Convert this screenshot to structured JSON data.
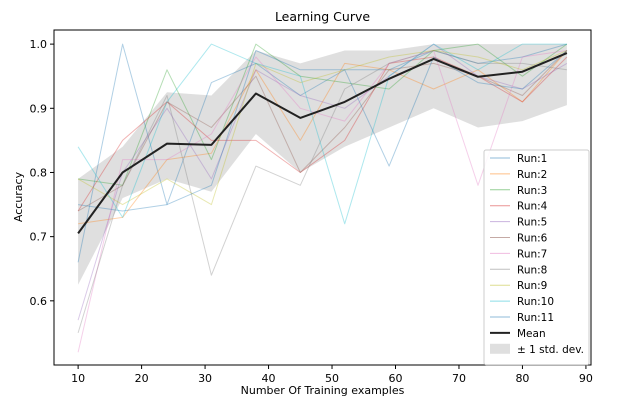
{
  "chart_data": {
    "type": "line",
    "title": "Learning Curve",
    "xlabel": "Number Of Training examples",
    "ylabel": "Accuracy",
    "xlim": [
      6.2,
      90.8
    ],
    "ylim": [
      0.5,
      1.022
    ],
    "x_ticks": [
      10,
      20,
      30,
      40,
      50,
      60,
      70,
      80,
      90
    ],
    "y_ticks": [
      0.6,
      0.7,
      0.8,
      0.9,
      1.0
    ],
    "x_tick_labels": [
      "10",
      "20",
      "30",
      "40",
      "50",
      "60",
      "70",
      "80",
      "90"
    ],
    "y_tick_labels": [
      "0.6",
      "0.7",
      "0.8",
      "0.9",
      "1.0"
    ],
    "x": [
      10,
      17,
      24,
      31,
      38,
      45,
      52,
      59,
      66,
      73,
      80,
      87
    ],
    "series": [
      {
        "name": "Run:1",
        "color": "#1f77b4",
        "values": [
          0.66,
          1.0,
          0.75,
          0.94,
          0.97,
          0.92,
          0.96,
          0.96,
          0.99,
          0.97,
          0.98,
          1.0
        ]
      },
      {
        "name": "Run:2",
        "color": "#ff7f0e",
        "values": [
          0.72,
          0.73,
          0.82,
          0.83,
          0.96,
          0.85,
          0.97,
          0.96,
          0.93,
          0.96,
          0.91,
          0.99
        ]
      },
      {
        "name": "Run:3",
        "color": "#2ca02c",
        "values": [
          0.79,
          0.78,
          0.96,
          0.82,
          1.0,
          0.95,
          0.94,
          0.93,
          0.99,
          1.0,
          0.95,
          1.0
        ]
      },
      {
        "name": "Run:4",
        "color": "#d62728",
        "values": [
          0.74,
          0.85,
          0.91,
          0.85,
          0.85,
          0.8,
          0.85,
          0.97,
          0.98,
          0.95,
          0.91,
          0.98
        ]
      },
      {
        "name": "Run:5",
        "color": "#9467bd",
        "values": [
          0.57,
          0.8,
          0.9,
          0.79,
          0.96,
          0.92,
          0.9,
          0.95,
          1.0,
          0.95,
          0.93,
          0.97
        ]
      },
      {
        "name": "Run:6",
        "color": "#8c564b",
        "values": [
          0.74,
          0.78,
          0.91,
          0.87,
          0.95,
          0.8,
          0.87,
          0.96,
          0.97,
          0.95,
          0.92,
          0.99
        ]
      },
      {
        "name": "Run:7",
        "color": "#e377c2",
        "values": [
          0.52,
          0.82,
          0.82,
          0.86,
          0.98,
          0.9,
          0.88,
          0.97,
          0.99,
          0.78,
          0.98,
          0.99
        ]
      },
      {
        "name": "Run:8",
        "color": "#7f7f7f",
        "values": [
          0.55,
          0.78,
          0.92,
          0.64,
          0.81,
          0.78,
          0.93,
          0.97,
          0.99,
          0.97,
          0.97,
          0.96
        ]
      },
      {
        "name": "Run:9",
        "color": "#bcbd22",
        "values": [
          0.79,
          0.75,
          0.79,
          0.75,
          0.97,
          0.94,
          0.96,
          0.98,
          0.99,
          0.98,
          0.96,
          0.99
        ]
      },
      {
        "name": "Run:10",
        "color": "#17becf",
        "values": [
          0.84,
          0.73,
          0.91,
          1.0,
          0.97,
          0.95,
          0.72,
          0.95,
          1.0,
          0.96,
          1.0,
          1.0
        ]
      },
      {
        "name": "Run:11",
        "color": "#1f77b4",
        "values": [
          0.75,
          0.74,
          0.75,
          0.78,
          0.99,
          0.96,
          0.96,
          0.81,
          0.98,
          0.94,
          0.93,
          0.99
        ]
      },
      {
        "name": "Mean",
        "color": "#222222",
        "values": [
          0.705,
          0.8,
          0.845,
          0.843,
          0.923,
          0.885,
          0.91,
          0.946,
          0.977,
          0.949,
          0.957,
          0.986
        ]
      }
    ],
    "band": {
      "name": "± 1 std. dev.",
      "color": "#b0b0b0",
      "upper": [
        0.79,
        0.84,
        0.925,
        0.92,
        0.99,
        0.97,
        0.99,
        0.99,
        1.0,
        1.0,
        1.0,
        1.0
      ],
      "lower": [
        0.625,
        0.76,
        0.79,
        0.77,
        0.86,
        0.8,
        0.84,
        0.87,
        0.9,
        0.87,
        0.88,
        0.905
      ]
    },
    "legend": {
      "position": "lower right"
    },
    "grid": false
  }
}
